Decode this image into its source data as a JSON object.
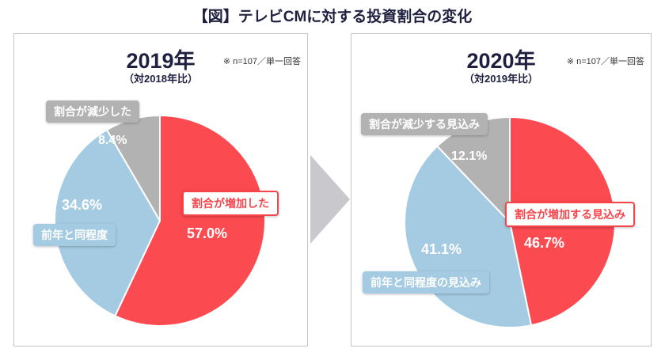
{
  "page_title": "【図】テレビCMに対する投資割合の変化",
  "colors": {
    "increase_red": "#fb4a50",
    "same_blue": "#a5cbe2",
    "decrease_gray": "#b2b2b2",
    "title_navy": "#1f2040",
    "panel_border": "#c4c4c4",
    "arrow_gray": "#c9c9cd"
  },
  "chart_data": [
    {
      "type": "pie",
      "title": "2019年",
      "subtitle": "（対2018年比）",
      "note": "※ n=107／単一回答",
      "start_angle_deg": 0,
      "direction": "clockwise",
      "legend_position": "on-chart",
      "slices": [
        {
          "label": "割合が増加した",
          "value": 57.0,
          "value_label": "57.0%",
          "color": "#fb4a50"
        },
        {
          "label": "前年と同程度",
          "value": 34.6,
          "value_label": "34.6%",
          "color": "#a5cbe2"
        },
        {
          "label": "割合が減少した",
          "value": 8.4,
          "value_label": "8.4%",
          "color": "#b2b2b2"
        }
      ]
    },
    {
      "type": "pie",
      "title": "2020年",
      "subtitle": "（対2019年比）",
      "note": "※ n=107／単一回答",
      "start_angle_deg": 0,
      "direction": "clockwise",
      "legend_position": "on-chart",
      "slices": [
        {
          "label": "割合が増加する見込み",
          "value": 46.7,
          "value_label": "46.7%",
          "color": "#fb4a50"
        },
        {
          "label": "前年と同程度の見込み",
          "value": 41.1,
          "value_label": "41.1%",
          "color": "#a5cbe2"
        },
        {
          "label": "割合が減少する見込み",
          "value": 12.1,
          "value_label": "12.1%",
          "color": "#b2b2b2"
        }
      ]
    }
  ]
}
